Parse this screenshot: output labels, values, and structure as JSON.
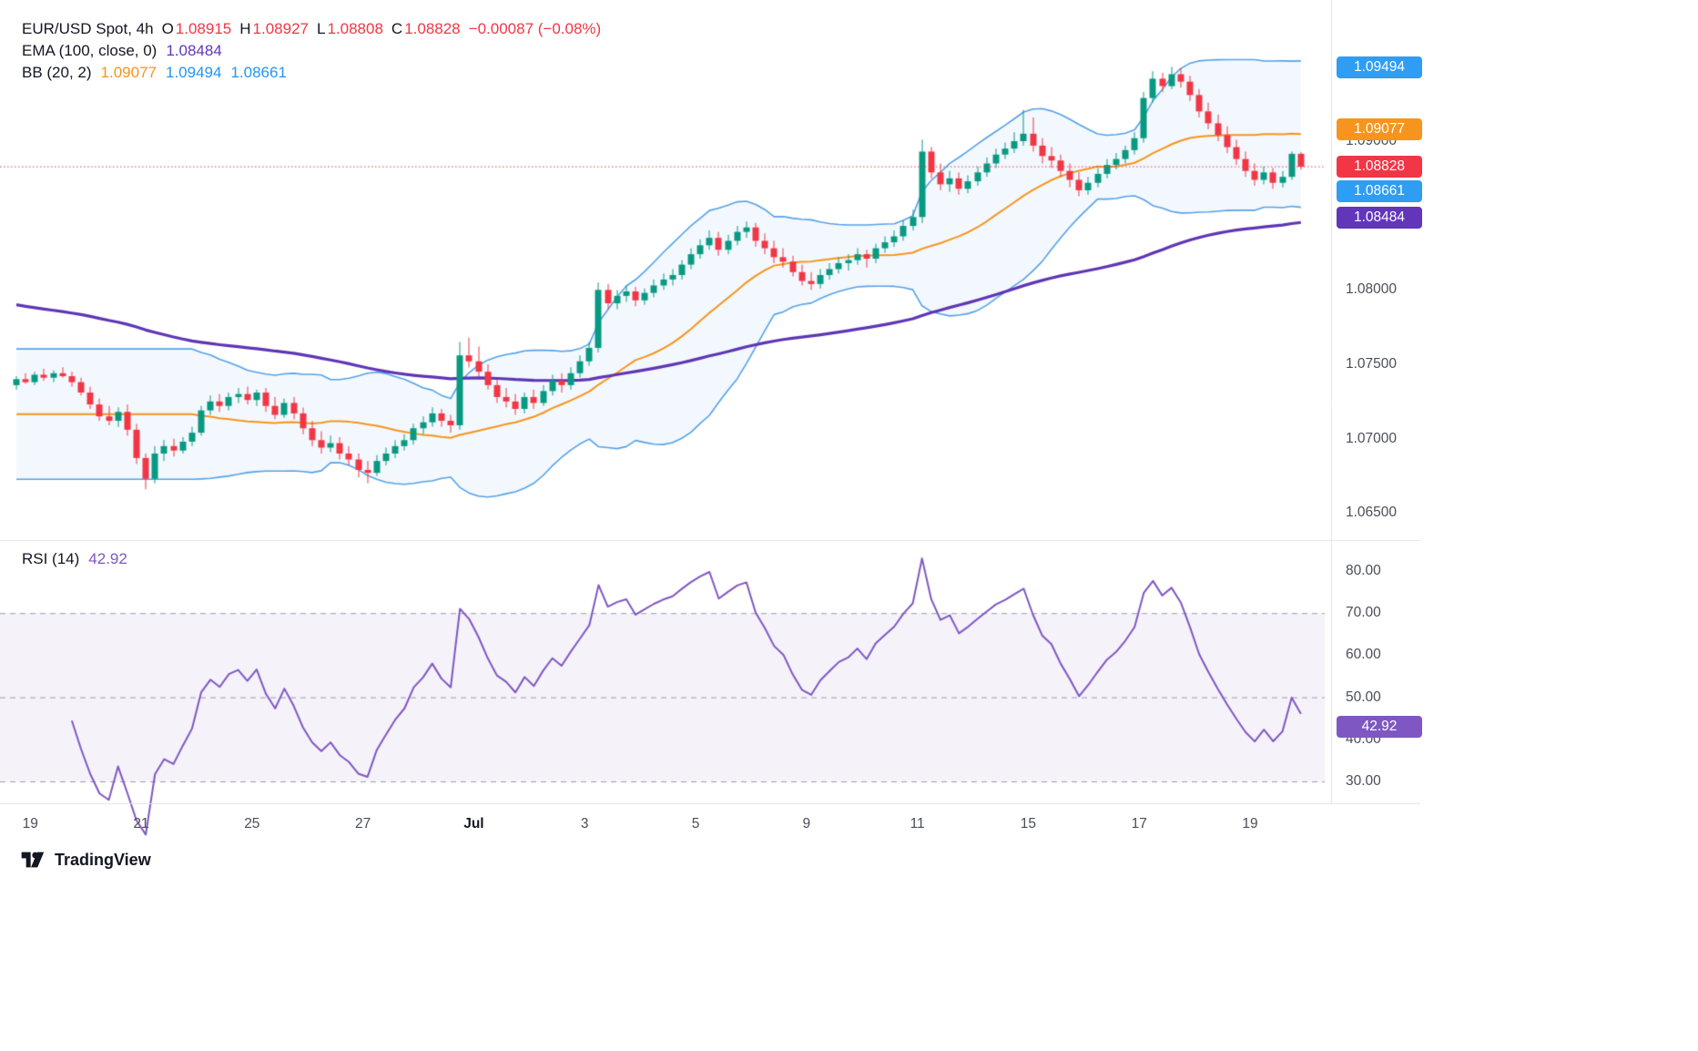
{
  "header": {
    "symbol_title": "EUR/USD Spot, 4h",
    "ohlc": [
      {
        "label": "O",
        "value": "1.08915"
      },
      {
        "label": "H",
        "value": "1.08927"
      },
      {
        "label": "L",
        "value": "1.08808"
      },
      {
        "label": "C",
        "value": "1.08828"
      }
    ],
    "change": "−0.00087 (−0.08%)",
    "ema_label": "EMA (100, close, 0)",
    "ema_value": "1.08484",
    "bb_label": "BB (20, 2)",
    "bb_values": [
      {
        "value": "1.09077",
        "color": "#f7941d"
      },
      {
        "value": "1.09494",
        "color": "#2196f3"
      },
      {
        "value": "1.08661",
        "color": "#2196f3"
      }
    ]
  },
  "rsi_header": {
    "label": "RSI (14)",
    "value": "42.92"
  },
  "price_axis": {
    "plain_labels": [
      {
        "text": "1.09000",
        "price": 1.09
      },
      {
        "text": "1.08000",
        "price": 1.08
      },
      {
        "text": "1.07500",
        "price": 1.075
      },
      {
        "text": "1.07000",
        "price": 1.07
      },
      {
        "text": "1.06500",
        "price": 1.065
      }
    ],
    "badges": [
      {
        "name": "bb-upper",
        "text": "1.09494",
        "price": 1.09494,
        "color": "#2f9df4"
      },
      {
        "name": "bb-basis",
        "text": "1.09077",
        "price": 1.09077,
        "color": "#f7941d"
      },
      {
        "name": "last-price",
        "text": "1.08828",
        "price": 1.08828,
        "color": "#f23645"
      },
      {
        "name": "bb-lower",
        "text": "1.08661",
        "price": 1.08661,
        "color": "#2f9df4"
      },
      {
        "name": "ema",
        "text": "1.08484",
        "price": 1.08484,
        "color": "#6136bb"
      }
    ]
  },
  "rsi_axis": {
    "plain_labels": [
      {
        "text": "80.00",
        "value": 80
      },
      {
        "text": "70.00",
        "value": 70
      },
      {
        "text": "60.00",
        "value": 60
      },
      {
        "text": "50.00",
        "value": 50
      },
      {
        "text": "40.00",
        "value": 40
      },
      {
        "text": "30.00",
        "value": 30
      }
    ],
    "badge": {
      "text": "42.92",
      "value": 42.92,
      "color": "#7e57c2"
    }
  },
  "time_axis": [
    {
      "text": "19",
      "candle": 0,
      "bold": false
    },
    {
      "text": "21",
      "candle": 12,
      "bold": false
    },
    {
      "text": "25",
      "candle": 24,
      "bold": false
    },
    {
      "text": "27",
      "candle": 36,
      "bold": false
    },
    {
      "text": "Jul",
      "candle": 48,
      "bold": true
    },
    {
      "text": "3",
      "candle": 60,
      "bold": false
    },
    {
      "text": "5",
      "candle": 72,
      "bold": false
    },
    {
      "text": "9",
      "candle": 84,
      "bold": false
    },
    {
      "text": "11",
      "candle": 96,
      "bold": false
    },
    {
      "text": "15",
      "candle": 108,
      "bold": false
    },
    {
      "text": "17",
      "candle": 120,
      "bold": false
    },
    {
      "text": "19",
      "candle": 132,
      "bold": false
    }
  ],
  "footer": {
    "brand": "TradingView"
  },
  "chart_data": {
    "type": "candlestick",
    "title": "EUR/USD Spot, 4h",
    "symbol": "EUR/USD Spot",
    "timeframe": "4h",
    "current": {
      "open": 1.08915,
      "high": 1.08927,
      "low": 1.08808,
      "close": 1.08828,
      "change": -0.00087,
      "change_pct": -0.08
    },
    "indicators": {
      "ema": {
        "period": 100,
        "source": "close",
        "offset": 0,
        "last": 1.08484
      },
      "bb": {
        "period": 20,
        "mult": 2,
        "basis_last": 1.09077,
        "upper_last": 1.09494,
        "lower_last": 1.08661
      },
      "rsi": {
        "period": 14,
        "last": 42.92,
        "levels": [
          70,
          50,
          30
        ],
        "band": [
          30,
          70
        ]
      }
    },
    "ylim": [
      1.0645,
      1.0952
    ],
    "rsi_ylim": [
      25,
      85
    ],
    "colors": {
      "up": "#089981",
      "down": "#f23645",
      "bb_line": "#55a1e8",
      "bb_fill": "rgba(85,161,232,0.08)",
      "bb_basis": "#f7941d",
      "ema": "#5d35b5",
      "rsi_line": "#7e57c2",
      "rsi_fill": "rgba(126,87,194,0.08)",
      "last_price_line": "#f23645",
      "grid": "#e0e3eb",
      "level_dash": "#9a9daa"
    },
    "candles": [
      [
        1.0736,
        1.0742,
        1.0733,
        1.074
      ],
      [
        1.074,
        1.0744,
        1.0737,
        1.0738
      ],
      [
        1.0738,
        1.0745,
        1.0736,
        1.0743
      ],
      [
        1.0743,
        1.0747,
        1.0739,
        1.0741
      ],
      [
        1.0741,
        1.0746,
        1.0738,
        1.0744
      ],
      [
        1.0744,
        1.0748,
        1.0741,
        1.0742
      ],
      [
        1.0742,
        1.0745,
        1.0735,
        1.0738
      ],
      [
        1.0738,
        1.0741,
        1.0729,
        1.0731
      ],
      [
        1.0731,
        1.0735,
        1.072,
        1.0723
      ],
      [
        1.0723,
        1.0727,
        1.0712,
        1.0715
      ],
      [
        1.0715,
        1.0722,
        1.0709,
        1.0712
      ],
      [
        1.0712,
        1.0721,
        1.0708,
        1.0718
      ],
      [
        1.0718,
        1.0723,
        1.0702,
        1.0706
      ],
      [
        1.0706,
        1.071,
        1.0683,
        1.0687
      ],
      [
        1.0687,
        1.069,
        1.0666,
        1.0673
      ],
      [
        1.0673,
        1.0695,
        1.067,
        1.069
      ],
      [
        1.069,
        1.0699,
        1.0685,
        1.0695
      ],
      [
        1.0695,
        1.07,
        1.0688,
        1.0692
      ],
      [
        1.0692,
        1.0701,
        1.069,
        1.0698
      ],
      [
        1.0698,
        1.0708,
        1.0695,
        1.0704
      ],
      [
        1.0704,
        1.0722,
        1.0702,
        1.0719
      ],
      [
        1.0719,
        1.0729,
        1.0716,
        1.0725
      ],
      [
        1.0725,
        1.073,
        1.0718,
        1.0722
      ],
      [
        1.0722,
        1.0731,
        1.0719,
        1.0728
      ],
      [
        1.0728,
        1.0734,
        1.0724,
        1.073
      ],
      [
        1.073,
        1.0735,
        1.0723,
        1.0726
      ],
      [
        1.0726,
        1.0733,
        1.0722,
        1.0731
      ],
      [
        1.0731,
        1.0734,
        1.0718,
        1.0722
      ],
      [
        1.0722,
        1.0728,
        1.0713,
        1.0716
      ],
      [
        1.0716,
        1.0727,
        1.0714,
        1.0724
      ],
      [
        1.0724,
        1.0728,
        1.0713,
        1.0717
      ],
      [
        1.0717,
        1.0721,
        1.0703,
        1.0707
      ],
      [
        1.0707,
        1.0712,
        1.0695,
        1.0699
      ],
      [
        1.0699,
        1.0705,
        1.069,
        1.0694
      ],
      [
        1.0694,
        1.0702,
        1.0691,
        1.0697
      ],
      [
        1.0697,
        1.0701,
        1.0686,
        1.069
      ],
      [
        1.069,
        1.0695,
        1.0682,
        1.0686
      ],
      [
        1.0686,
        1.069,
        1.0674,
        1.0679
      ],
      [
        1.0679,
        1.0685,
        1.067,
        1.0677
      ],
      [
        1.0677,
        1.0689,
        1.0675,
        1.0685
      ],
      [
        1.0685,
        1.0694,
        1.0682,
        1.069
      ],
      [
        1.069,
        1.0699,
        1.0687,
        1.0695
      ],
      [
        1.0695,
        1.0703,
        1.0692,
        1.0699
      ],
      [
        1.0699,
        1.071,
        1.0696,
        1.0707
      ],
      [
        1.0707,
        1.0715,
        1.0703,
        1.0711
      ],
      [
        1.0711,
        1.0721,
        1.0708,
        1.0717
      ],
      [
        1.0717,
        1.072,
        1.0708,
        1.0712
      ],
      [
        1.0712,
        1.0716,
        1.0704,
        1.0709
      ],
      [
        1.0709,
        1.0765,
        1.0706,
        1.0756
      ],
      [
        1.0756,
        1.0768,
        1.0748,
        1.0752
      ],
      [
        1.0752,
        1.0762,
        1.0742,
        1.0745
      ],
      [
        1.0745,
        1.075,
        1.0733,
        1.0736
      ],
      [
        1.0736,
        1.074,
        1.0724,
        1.0728
      ],
      [
        1.0728,
        1.0734,
        1.0721,
        1.0725
      ],
      [
        1.0725,
        1.073,
        1.0716,
        1.072
      ],
      [
        1.072,
        1.0731,
        1.0717,
        1.0728
      ],
      [
        1.0728,
        1.0733,
        1.072,
        1.0724
      ],
      [
        1.0724,
        1.0736,
        1.0722,
        1.0732
      ],
      [
        1.0732,
        1.0743,
        1.0729,
        1.0739
      ],
      [
        1.0739,
        1.0744,
        1.0731,
        1.0736
      ],
      [
        1.0736,
        1.0748,
        1.0733,
        1.0744
      ],
      [
        1.0744,
        1.0756,
        1.0741,
        1.0752
      ],
      [
        1.0752,
        1.0765,
        1.0749,
        1.0761
      ],
      [
        1.0761,
        1.0805,
        1.0758,
        1.08
      ],
      [
        1.08,
        1.0804,
        1.0787,
        1.0791
      ],
      [
        1.0791,
        1.08,
        1.0787,
        1.0796
      ],
      [
        1.0796,
        1.0803,
        1.0792,
        1.0799
      ],
      [
        1.0799,
        1.0802,
        1.0789,
        1.0793
      ],
      [
        1.0793,
        1.0801,
        1.079,
        1.0798
      ],
      [
        1.0798,
        1.0807,
        1.0795,
        1.0803
      ],
      [
        1.0803,
        1.0811,
        1.08,
        1.0807
      ],
      [
        1.0807,
        1.0814,
        1.0803,
        1.081
      ],
      [
        1.081,
        1.082,
        1.0807,
        1.0817
      ],
      [
        1.0817,
        1.0828,
        1.0814,
        1.0824
      ],
      [
        1.0824,
        1.0834,
        1.0821,
        1.083
      ],
      [
        1.083,
        1.084,
        1.0827,
        1.0835
      ],
      [
        1.0835,
        1.0839,
        1.0823,
        1.0827
      ],
      [
        1.0827,
        1.0837,
        1.0824,
        1.0833
      ],
      [
        1.0833,
        1.0843,
        1.083,
        1.0839
      ],
      [
        1.0839,
        1.0846,
        1.0835,
        1.0842
      ],
      [
        1.0842,
        1.0845,
        1.0829,
        1.0833
      ],
      [
        1.0833,
        1.0838,
        1.0824,
        1.0828
      ],
      [
        1.0828,
        1.0833,
        1.0818,
        1.0822
      ],
      [
        1.0822,
        1.0828,
        1.0815,
        1.0819
      ],
      [
        1.0819,
        1.0823,
        1.0809,
        1.0812
      ],
      [
        1.0812,
        1.0817,
        1.0803,
        1.0806
      ],
      [
        1.0806,
        1.0812,
        1.08,
        1.0804
      ],
      [
        1.0804,
        1.0814,
        1.0801,
        1.081
      ],
      [
        1.081,
        1.0818,
        1.0807,
        1.0814
      ],
      [
        1.0814,
        1.0822,
        1.0811,
        1.0818
      ],
      [
        1.0818,
        1.0824,
        1.0813,
        1.082
      ],
      [
        1.082,
        1.0828,
        1.0817,
        1.0824
      ],
      [
        1.0824,
        1.0827,
        1.0815,
        1.0821
      ],
      [
        1.0821,
        1.0831,
        1.0818,
        1.0828
      ],
      [
        1.0828,
        1.0836,
        1.0825,
        1.0832
      ],
      [
        1.0832,
        1.084,
        1.0829,
        1.0836
      ],
      [
        1.0836,
        1.0847,
        1.0833,
        1.0843
      ],
      [
        1.0843,
        1.0854,
        1.084,
        1.0849
      ],
      [
        1.0849,
        1.0901,
        1.0845,
        1.0893
      ],
      [
        1.0893,
        1.0896,
        1.0875,
        1.0879
      ],
      [
        1.0879,
        1.0885,
        1.0867,
        1.0871
      ],
      [
        1.0871,
        1.088,
        1.0866,
        1.0875
      ],
      [
        1.0875,
        1.0879,
        1.0864,
        1.0868
      ],
      [
        1.0868,
        1.0877,
        1.0865,
        1.0873
      ],
      [
        1.0873,
        1.0883,
        1.087,
        1.0879
      ],
      [
        1.0879,
        1.0889,
        1.0876,
        1.0885
      ],
      [
        1.0885,
        1.0895,
        1.0882,
        1.0891
      ],
      [
        1.0891,
        1.0899,
        1.0888,
        1.0895
      ],
      [
        1.0895,
        1.0906,
        1.0892,
        1.09
      ],
      [
        1.09,
        1.0921,
        1.0897,
        1.0905
      ],
      [
        1.0905,
        1.0916,
        1.0893,
        1.0897
      ],
      [
        1.0897,
        1.0902,
        1.0885,
        1.089
      ],
      [
        1.089,
        1.0896,
        1.0882,
        1.0887
      ],
      [
        1.0887,
        1.0891,
        1.0876,
        1.088
      ],
      [
        1.088,
        1.0885,
        1.0869,
        1.0874
      ],
      [
        1.0874,
        1.0879,
        1.0863,
        1.0867
      ],
      [
        1.0867,
        1.0876,
        1.0864,
        1.0872
      ],
      [
        1.0872,
        1.0882,
        1.0869,
        1.0878
      ],
      [
        1.0878,
        1.0888,
        1.0875,
        1.0884
      ],
      [
        1.0884,
        1.0892,
        1.0881,
        1.0888
      ],
      [
        1.0888,
        1.0897,
        1.0885,
        1.0894
      ],
      [
        1.0894,
        1.0906,
        1.0891,
        1.0902
      ],
      [
        1.0902,
        1.0933,
        1.0899,
        1.0929
      ],
      [
        1.0929,
        1.0947,
        1.0926,
        1.0942
      ],
      [
        1.0942,
        1.0946,
        1.0933,
        1.0937
      ],
      [
        1.0937,
        1.095,
        1.0935,
        1.0945
      ],
      [
        1.0945,
        1.0949,
        1.0936,
        1.094
      ],
      [
        1.094,
        1.0944,
        1.0927,
        1.0931
      ],
      [
        1.0931,
        1.0935,
        1.0916,
        1.092
      ],
      [
        1.092,
        1.0926,
        1.0908,
        1.0912
      ],
      [
        1.0912,
        1.0918,
        1.09,
        1.0904
      ],
      [
        1.0904,
        1.091,
        1.0892,
        1.0896
      ],
      [
        1.0896,
        1.0901,
        1.0884,
        1.0888
      ],
      [
        1.0888,
        1.0893,
        1.0876,
        1.088
      ],
      [
        1.088,
        1.0885,
        1.087,
        1.0874
      ],
      [
        1.0874,
        1.0883,
        1.0871,
        1.0879
      ],
      [
        1.0879,
        1.0882,
        1.0868,
        1.0872
      ],
      [
        1.0872,
        1.088,
        1.0869,
        1.0876
      ],
      [
        1.0876,
        1.0893,
        1.0874,
        1.08915
      ],
      [
        1.08915,
        1.08927,
        1.08808,
        1.08828
      ]
    ]
  }
}
